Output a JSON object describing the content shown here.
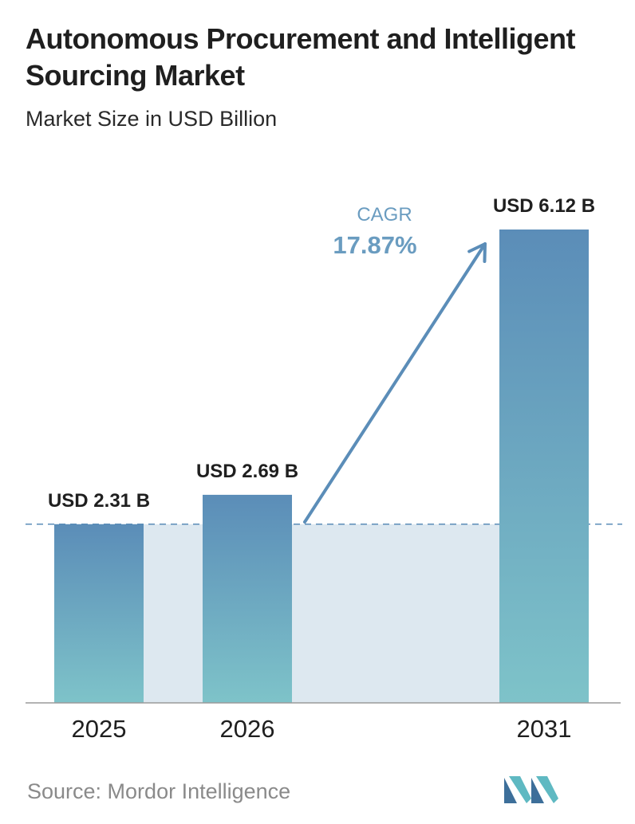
{
  "header": {
    "title": "Autonomous Procurement and Intelligent Sourcing Market",
    "subtitle": "Market Size in USD Billion"
  },
  "cagr": {
    "label": "CAGR",
    "value": "17.87%"
  },
  "source": "Source:  Mordor Intelligence",
  "colors": {
    "bar_top": "#5b8db8",
    "bar_bottom": "#7ec3c9",
    "band": "#dde8f0",
    "cagr_text": "#6a9cc0",
    "arrow": "#5b8db8",
    "logo_dark": "#3d6f9a",
    "logo_light": "#5fb9c2"
  },
  "chart_data": {
    "type": "bar",
    "categories": [
      "2025",
      "2026",
      "2031"
    ],
    "values": [
      2.31,
      2.69,
      6.12
    ],
    "value_labels": [
      "USD 2.31 B",
      "USD 2.69 B",
      "USD 6.12 B"
    ],
    "ylim": [
      0,
      6.12
    ],
    "reference_line": 2.31,
    "grid": false
  }
}
